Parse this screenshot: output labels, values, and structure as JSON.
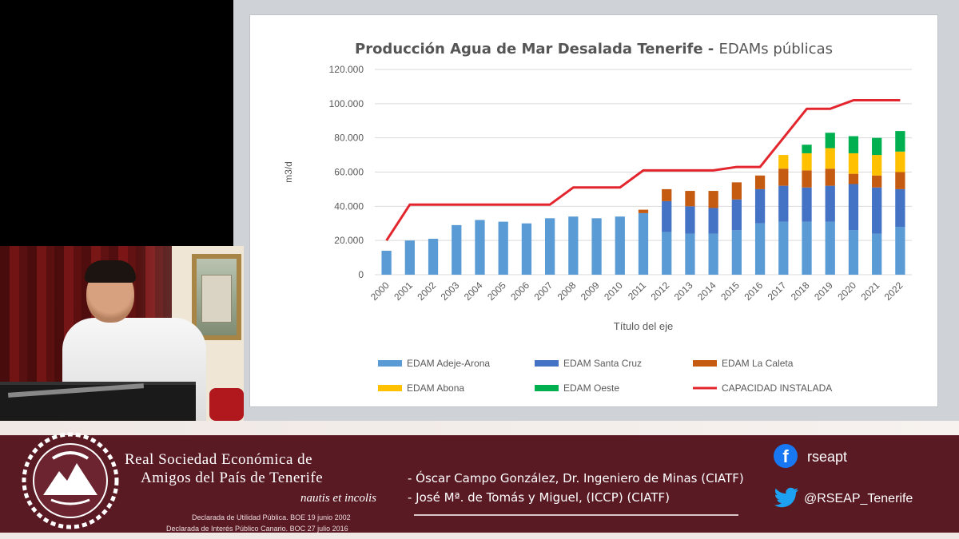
{
  "slide": {
    "title_bold": "Producción Agua de Mar Desalada Tenerife",
    "title_sep": " - ",
    "title_light": "EDAMs públicas"
  },
  "chart_data": {
    "type": "bar",
    "stacked": true,
    "xlabel": "Título del eje",
    "ylabel": "m3/d",
    "ylim": [
      0,
      120000
    ],
    "yticks": [
      "0",
      "20.000",
      "40.000",
      "60.000",
      "80.000",
      "100.000",
      "120.000"
    ],
    "ytick_values": [
      0,
      20000,
      40000,
      60000,
      80000,
      100000,
      120000
    ],
    "grid": true,
    "legend_position": "bottom",
    "categories": [
      "2000",
      "2001",
      "2002",
      "2003",
      "2004",
      "2005",
      "2006",
      "2007",
      "2008",
      "2009",
      "2010",
      "2011",
      "2012",
      "2013",
      "2014",
      "2015",
      "2016",
      "2017",
      "2018",
      "2019",
      "2020",
      "2021",
      "2022"
    ],
    "series": [
      {
        "name": "EDAM Adeje-Arona",
        "color": "#5b9bd5",
        "kind": "bar",
        "values": [
          14000,
          20000,
          21000,
          29000,
          32000,
          31000,
          30000,
          33000,
          34000,
          33000,
          34000,
          36000,
          25000,
          24000,
          24000,
          26000,
          30000,
          31000,
          31000,
          31000,
          26000,
          24000,
          28000
        ]
      },
      {
        "name": "EDAM Santa Cruz",
        "color": "#4472c4",
        "kind": "bar",
        "values": [
          0,
          0,
          0,
          0,
          0,
          0,
          0,
          0,
          0,
          0,
          0,
          0,
          18000,
          16000,
          15000,
          18000,
          20000,
          21000,
          20000,
          21000,
          27000,
          27000,
          22000
        ]
      },
      {
        "name": "EDAM La Caleta",
        "color": "#c55a11",
        "kind": "bar",
        "values": [
          0,
          0,
          0,
          0,
          0,
          0,
          0,
          0,
          0,
          0,
          0,
          2000,
          7000,
          9000,
          10000,
          10000,
          8000,
          10000,
          10000,
          10000,
          6000,
          7000,
          10000
        ]
      },
      {
        "name": "EDAM Abona",
        "color": "#ffc000",
        "kind": "bar",
        "values": [
          0,
          0,
          0,
          0,
          0,
          0,
          0,
          0,
          0,
          0,
          0,
          0,
          0,
          0,
          0,
          0,
          0,
          8000,
          10000,
          12000,
          12000,
          12000,
          12000
        ]
      },
      {
        "name": "EDAM Oeste",
        "color": "#00b050",
        "kind": "bar",
        "values": [
          0,
          0,
          0,
          0,
          0,
          0,
          0,
          0,
          0,
          0,
          0,
          0,
          0,
          0,
          0,
          0,
          0,
          0,
          5000,
          9000,
          10000,
          10000,
          12000
        ]
      },
      {
        "name": "CAPACIDAD INSTALADA",
        "color": "#e3262d",
        "kind": "line",
        "values": [
          20000,
          41000,
          41000,
          41000,
          41000,
          41000,
          41000,
          41000,
          51000,
          51000,
          51000,
          61000,
          61000,
          61000,
          61000,
          63000,
          63000,
          80000,
          97000,
          97000,
          102000,
          102000,
          102000
        ]
      }
    ]
  },
  "banner": {
    "org_line1": "Real Sociedad Económica de",
    "org_line2": "Amigos del País de Tenerife",
    "motto": "nautis et incolis",
    "decl1": "Declarada de Utilidad Pública. BOE 19 junio 2002",
    "decl2": "Declarada de Interés Público Canario. BOC 27 julio 2016",
    "speaker1": "- Óscar Campo González, Dr. Ingeniero de Minas (CIATF)",
    "speaker2": "- José Mª. de Tomás y Miguel, (ICCP) (CIATF)",
    "facebook": "rseapt",
    "twitter": "@RSEAP_Tenerife",
    "fb_icon": "facebook-icon",
    "tw_icon": "twitter-icon"
  }
}
